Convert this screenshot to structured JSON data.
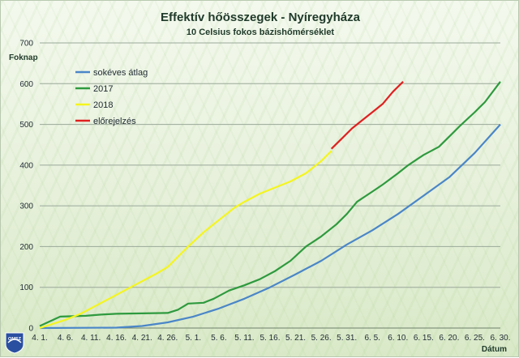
{
  "header": {
    "title": "Effektív hőösszegek - Nyíregyháza",
    "subtitle": "10 Celsius fokos bázishőmérséklet"
  },
  "logo": {
    "text": "OMSZ",
    "icon": "omsz-logo-icon"
  },
  "chart_data": {
    "type": "line",
    "title": "Effektív hőösszegek - Nyíregyháza",
    "subtitle": "10 Celsius fokos bázishőmérséklet",
    "ylabel": "Foknap",
    "xlabel": "Dátum",
    "ylim": [
      0,
      700
    ],
    "yticks": [
      0,
      100,
      200,
      300,
      400,
      500,
      600,
      700
    ],
    "x_start_day": 1,
    "x_end_day": 91,
    "xticks": [
      {
        "label": "4. 1.",
        "day": 1
      },
      {
        "label": "4. 6.",
        "day": 6
      },
      {
        "label": "4. 11.",
        "day": 11
      },
      {
        "label": "4. 16.",
        "day": 16
      },
      {
        "label": "4. 21.",
        "day": 21
      },
      {
        "label": "4. 26.",
        "day": 26
      },
      {
        "label": "5. 1.",
        "day": 31
      },
      {
        "label": "5. 6.",
        "day": 36
      },
      {
        "label": "5. 11.",
        "day": 41
      },
      {
        "label": "5. 16.",
        "day": 46
      },
      {
        "label": "5. 21.",
        "day": 51
      },
      {
        "label": "5. 26.",
        "day": 56
      },
      {
        "label": "5. 31.",
        "day": 61
      },
      {
        "label": "6. 5.",
        "day": 66
      },
      {
        "label": "6. 10.",
        "day": 71
      },
      {
        "label": "6. 15.",
        "day": 76
      },
      {
        "label": "6. 20.",
        "day": 81
      },
      {
        "label": "6. 25.",
        "day": 86
      },
      {
        "label": "6. 30.",
        "day": 91
      }
    ],
    "grid": true,
    "legend_position": "top-left",
    "series": [
      {
        "name": "sokéves átlag",
        "color": "#4a86c8",
        "points": [
          [
            1,
            0
          ],
          [
            16,
            1
          ],
          [
            21,
            5
          ],
          [
            26,
            14
          ],
          [
            31,
            28
          ],
          [
            36,
            48
          ],
          [
            41,
            72
          ],
          [
            46,
            100
          ],
          [
            51,
            132
          ],
          [
            56,
            165
          ],
          [
            61,
            205
          ],
          [
            66,
            240
          ],
          [
            71,
            280
          ],
          [
            76,
            325
          ],
          [
            81,
            370
          ],
          [
            86,
            430
          ],
          [
            91,
            500
          ]
        ]
      },
      {
        "name": "2017",
        "color": "#2e9a3e",
        "points": [
          [
            1,
            5
          ],
          [
            5,
            28
          ],
          [
            10,
            30
          ],
          [
            13,
            33
          ],
          [
            16,
            35
          ],
          [
            21,
            36
          ],
          [
            26,
            37
          ],
          [
            28,
            45
          ],
          [
            30,
            60
          ],
          [
            33,
            62
          ],
          [
            35,
            72
          ],
          [
            38,
            92
          ],
          [
            41,
            105
          ],
          [
            44,
            120
          ],
          [
            47,
            140
          ],
          [
            50,
            165
          ],
          [
            53,
            200
          ],
          [
            56,
            225
          ],
          [
            59,
            255
          ],
          [
            61,
            280
          ],
          [
            63,
            310
          ],
          [
            66,
            335
          ],
          [
            68,
            352
          ],
          [
            71,
            380
          ],
          [
            73,
            400
          ],
          [
            76,
            425
          ],
          [
            79,
            445
          ],
          [
            81,
            470
          ],
          [
            83,
            495
          ],
          [
            86,
            530
          ],
          [
            88,
            555
          ],
          [
            91,
            605
          ]
        ]
      },
      {
        "name": "2018",
        "color": "#f5f51f",
        "points": [
          [
            1,
            0
          ],
          [
            3,
            8
          ],
          [
            6,
            20
          ],
          [
            9,
            35
          ],
          [
            12,
            55
          ],
          [
            15,
            75
          ],
          [
            18,
            95
          ],
          [
            21,
            115
          ],
          [
            24,
            135
          ],
          [
            26,
            150
          ],
          [
            28,
            175
          ],
          [
            30,
            200
          ],
          [
            33,
            235
          ],
          [
            36,
            265
          ],
          [
            39,
            295
          ],
          [
            41,
            310
          ],
          [
            44,
            330
          ],
          [
            47,
            345
          ],
          [
            50,
            360
          ],
          [
            53,
            380
          ],
          [
            56,
            410
          ],
          [
            58,
            435
          ]
        ]
      },
      {
        "name": "előrejelzés",
        "color": "#e02020",
        "points": [
          [
            58,
            440
          ],
          [
            60,
            465
          ],
          [
            62,
            490
          ],
          [
            64,
            510
          ],
          [
            66,
            530
          ],
          [
            68,
            550
          ],
          [
            70,
            580
          ],
          [
            72,
            605
          ]
        ]
      }
    ]
  }
}
